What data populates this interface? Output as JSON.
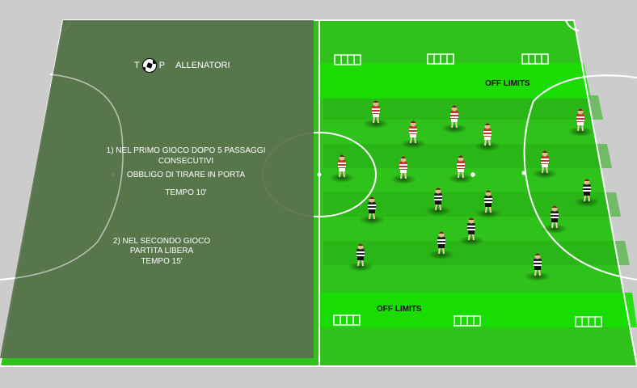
{
  "logo": {
    "letter_1": "T",
    "letter_2": "P",
    "brand": "ALLENATORI"
  },
  "instructions": {
    "line_1": "1) NEL PRIMO GIOCO DOPO 5 PASSAGGI",
    "line_2": "CONSECUTIVI",
    "line_3": "OBBLIGO DI TIRARE IN PORTA",
    "line_4": "TEMPO  10'",
    "line_5": "2) NEL SECONDO GIOCO",
    "line_6": "PARTITA LIBERA",
    "line_7": "TEMPO 15'"
  },
  "zones": {
    "top_label": "OFF LIMITS",
    "bottom_label": "OFF LIMITS"
  },
  "colors": {
    "grass_light": "#2fc21a",
    "grass_dark": "#28b015",
    "offlimits": "#17e000",
    "overlay": "#5a7050",
    "team_red": "#c8342c",
    "team_black": "#222222"
  }
}
